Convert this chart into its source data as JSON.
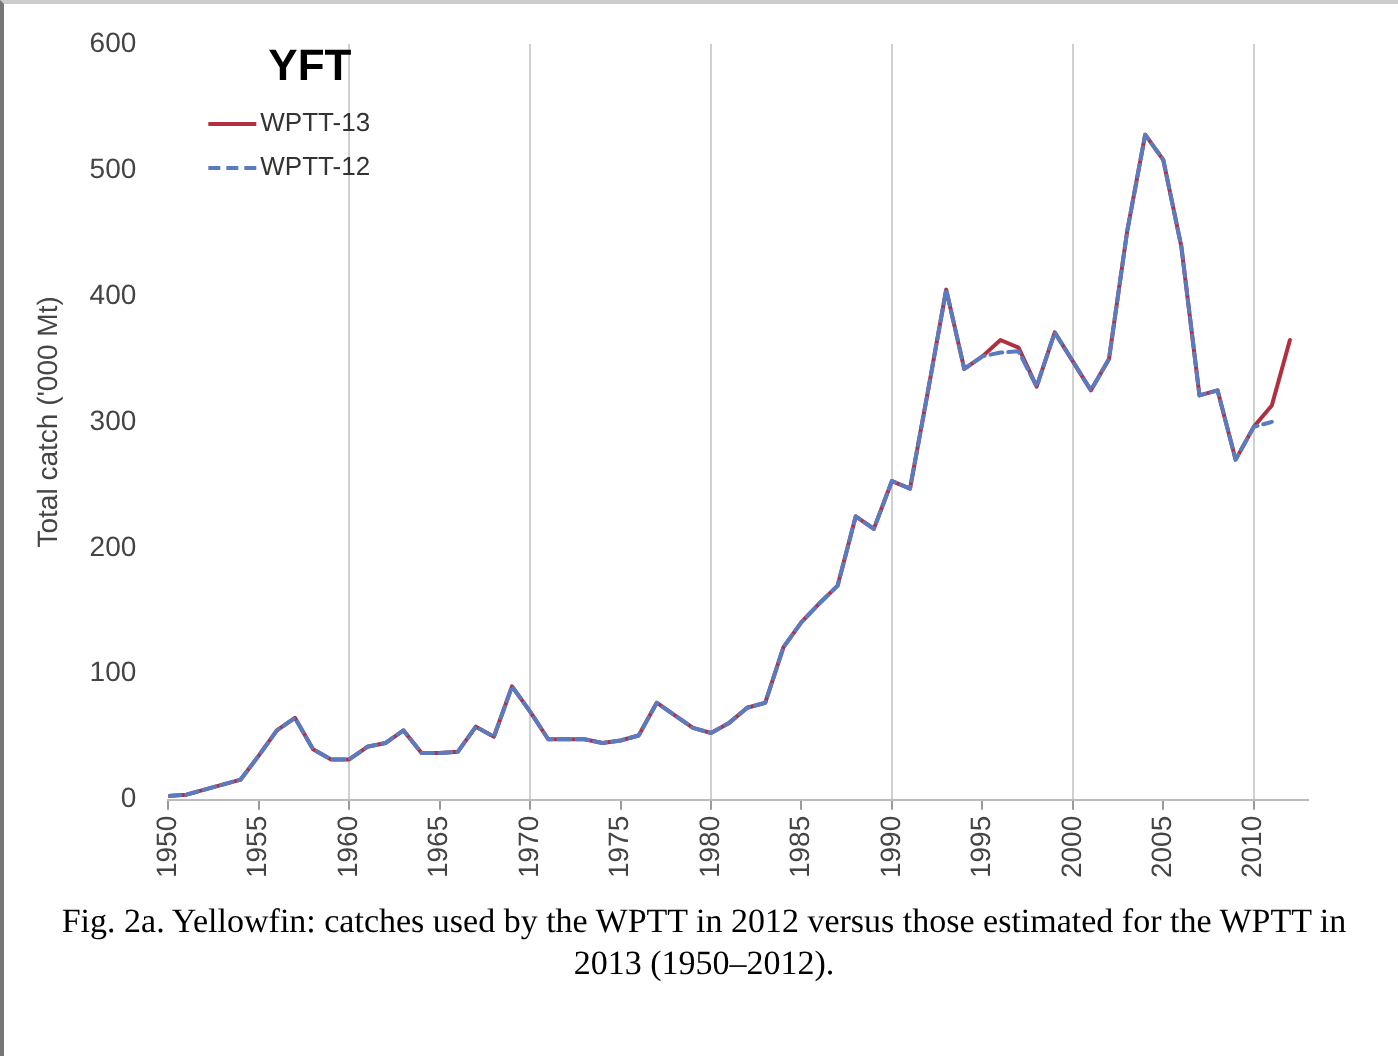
{
  "chart_data": {
    "type": "line",
    "legend_title": "YFT",
    "ylabel": "Total catch ('000 Mt)",
    "x": [
      1950,
      1951,
      1952,
      1953,
      1954,
      1955,
      1956,
      1957,
      1958,
      1959,
      1960,
      1961,
      1962,
      1963,
      1964,
      1965,
      1966,
      1967,
      1968,
      1969,
      1970,
      1971,
      1972,
      1973,
      1974,
      1975,
      1976,
      1977,
      1978,
      1979,
      1980,
      1981,
      1982,
      1983,
      1984,
      1985,
      1986,
      1987,
      1988,
      1989,
      1990,
      1991,
      1992,
      1993,
      1994,
      1995,
      1996,
      1997,
      1998,
      1999,
      2000,
      2001,
      2002,
      2003,
      2004,
      2005,
      2006,
      2007,
      2008,
      2009,
      2010,
      2011,
      2012
    ],
    "series": [
      {
        "name": "WPTT-13",
        "color": "#b03040",
        "line_style": "solid",
        "values": [
          3,
          4,
          8,
          12,
          16,
          35,
          55,
          65,
          40,
          32,
          32,
          42,
          45,
          55,
          37,
          37,
          38,
          58,
          50,
          90,
          70,
          48,
          48,
          48,
          45,
          47,
          51,
          77,
          67,
          57,
          53,
          61,
          73,
          77,
          121,
          141,
          156,
          170,
          225,
          215,
          253,
          247,
          325,
          405,
          342,
          352,
          365,
          359,
          328,
          371,
          348,
          325,
          350,
          451,
          528,
          508,
          439,
          321,
          325,
          270,
          296,
          313,
          365
        ]
      },
      {
        "name": "WPTT-12",
        "color": "#5b7bc0",
        "line_style": "dashed",
        "values": [
          3,
          4,
          8,
          12,
          16,
          35,
          55,
          65,
          40,
          32,
          32,
          42,
          45,
          55,
          37,
          37,
          38,
          58,
          50,
          90,
          70,
          48,
          48,
          48,
          45,
          47,
          51,
          77,
          67,
          57,
          53,
          61,
          73,
          77,
          121,
          141,
          156,
          170,
          225,
          215,
          253,
          247,
          325,
          405,
          342,
          352,
          355,
          356,
          328,
          371,
          348,
          325,
          350,
          451,
          528,
          508,
          439,
          321,
          325,
          270,
          296,
          300,
          null
        ]
      }
    ],
    "xlim": [
      1950,
      2013
    ],
    "xticks": [
      1950,
      1955,
      1960,
      1965,
      1970,
      1975,
      1980,
      1985,
      1990,
      1995,
      2000,
      2005,
      2010
    ],
    "ylim": [
      0,
      600
    ],
    "yticks": [
      0,
      100,
      200,
      300,
      400,
      500,
      600
    ],
    "grid": "x",
    "legend": "top left",
    "marker": "none",
    "annotations": [
      "Fig. 2a.  Yellowfin: catches used by the WPTT in 2012 versus those estimated for the WPTT in 2013 (1950–2012)."
    ]
  }
}
